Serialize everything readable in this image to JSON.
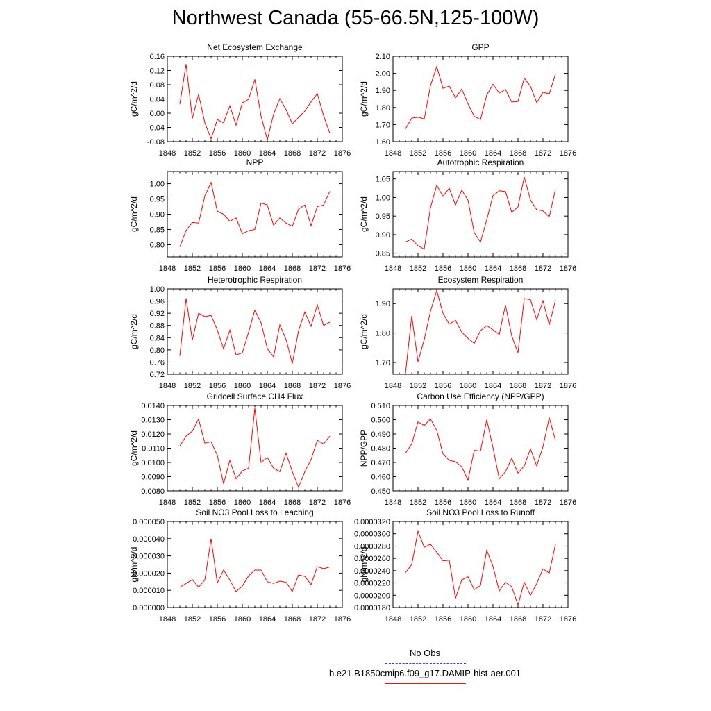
{
  "title": "Northwest Canada (55-66.5N,125-100W)",
  "x_ticks": [
    "1848",
    "1852",
    "1856",
    "1860",
    "1864",
    "1868",
    "1872",
    "1876"
  ],
  "legend": [
    {
      "label": "No Obs",
      "color": "#3b3bd6",
      "style": "dashed"
    },
    {
      "label": "b.e21.B1850cmip6.f09_g17.DAMIP-hist-aer.001",
      "color": "#e31a1c",
      "style": "solid"
    }
  ],
  "series_color": "#ff0000",
  "chart_data": [
    {
      "type": "line",
      "title": "Net Ecosystem Exchange",
      "ylabel": "gC/m^2/d",
      "xlim": [
        1848,
        1876
      ],
      "ylim": [
        -0.08,
        0.16
      ],
      "yticks": [
        "-0.08",
        "-0.04",
        "0.00",
        "0.04",
        "0.08",
        "0.12",
        "0.16"
      ],
      "x": [
        1850,
        1851,
        1852,
        1853,
        1854,
        1855,
        1856,
        1857,
        1858,
        1859,
        1860,
        1861,
        1862,
        1863,
        1864,
        1865,
        1866,
        1867,
        1868,
        1869,
        1870,
        1871,
        1872,
        1873,
        1874
      ],
      "values": [
        0.025,
        0.138,
        -0.015,
        0.053,
        -0.027,
        -0.072,
        -0.018,
        -0.027,
        0.021,
        -0.034,
        0.029,
        0.039,
        0.095,
        -0.008,
        -0.075,
        -0.003,
        0.041,
        0.01,
        -0.03,
        -0.012,
        0.006,
        0.032,
        0.055,
        -0.007,
        -0.056
      ]
    },
    {
      "type": "line",
      "title": "GPP",
      "ylabel": "gC/m^2/d",
      "xlim": [
        1848,
        1876
      ],
      "ylim": [
        1.6,
        2.1
      ],
      "yticks": [
        "1.60",
        "1.70",
        "1.80",
        "1.90",
        "2.00",
        "2.10"
      ],
      "x": [
        1850,
        1851,
        1852,
        1853,
        1854,
        1855,
        1856,
        1857,
        1858,
        1859,
        1860,
        1861,
        1862,
        1863,
        1864,
        1865,
        1866,
        1867,
        1868,
        1869,
        1870,
        1871,
        1872,
        1873,
        1874
      ],
      "values": [
        1.675,
        1.738,
        1.743,
        1.733,
        1.928,
        2.04,
        1.912,
        1.925,
        1.857,
        1.908,
        1.822,
        1.748,
        1.73,
        1.873,
        1.936,
        1.884,
        1.906,
        1.832,
        1.835,
        1.972,
        1.924,
        1.828,
        1.889,
        1.88,
        1.995
      ]
    },
    {
      "type": "line",
      "title": "NPP",
      "ylabel": "gC/m^2/d",
      "xlim": [
        1848,
        1876
      ],
      "ylim": [
        0.76,
        1.04
      ],
      "yticks": [
        "0.80",
        "0.85",
        "0.90",
        "0.95",
        "1.00"
      ],
      "x": [
        1850,
        1851,
        1852,
        1853,
        1854,
        1855,
        1856,
        1857,
        1858,
        1859,
        1860,
        1861,
        1862,
        1863,
        1864,
        1865,
        1866,
        1867,
        1868,
        1869,
        1870,
        1871,
        1872,
        1873,
        1874
      ],
      "values": [
        0.793,
        0.847,
        0.873,
        0.871,
        0.96,
        1.004,
        0.91,
        0.9,
        0.877,
        0.888,
        0.836,
        0.846,
        0.85,
        0.937,
        0.93,
        0.864,
        0.888,
        0.871,
        0.86,
        0.917,
        0.93,
        0.862,
        0.925,
        0.93,
        0.975
      ]
    },
    {
      "type": "line",
      "title": "Autotrophic Respiration",
      "ylabel": "gC/m^2/d",
      "xlim": [
        1848,
        1876
      ],
      "ylim": [
        0.84,
        1.07
      ],
      "yticks": [
        "0.85",
        "0.90",
        "0.95",
        "1.00",
        "1.05"
      ],
      "x": [
        1850,
        1851,
        1852,
        1853,
        1854,
        1855,
        1856,
        1857,
        1858,
        1859,
        1860,
        1861,
        1862,
        1863,
        1864,
        1865,
        1866,
        1867,
        1868,
        1869,
        1870,
        1871,
        1872,
        1873,
        1874
      ],
      "values": [
        0.88,
        0.888,
        0.87,
        0.861,
        0.973,
        1.033,
        1.003,
        1.025,
        0.98,
        1.02,
        0.993,
        0.905,
        0.88,
        0.94,
        1.005,
        1.018,
        1.016,
        0.96,
        0.975,
        1.055,
        0.993,
        0.967,
        0.964,
        0.948,
        1.022
      ]
    },
    {
      "type": "line",
      "title": "Heterotrophic Respiration",
      "ylabel": "gC/m^2/d",
      "xlim": [
        1848,
        1876
      ],
      "ylim": [
        0.72,
        1.0
      ],
      "yticks": [
        "0.72",
        "0.76",
        "0.80",
        "0.84",
        "0.88",
        "0.92",
        "0.96",
        "1.00"
      ],
      "x": [
        1850,
        1851,
        1852,
        1853,
        1854,
        1855,
        1856,
        1857,
        1858,
        1859,
        1860,
        1861,
        1862,
        1863,
        1864,
        1865,
        1866,
        1867,
        1868,
        1869,
        1870,
        1871,
        1872,
        1873,
        1874
      ],
      "values": [
        0.78,
        0.969,
        0.832,
        0.92,
        0.909,
        0.913,
        0.865,
        0.803,
        0.865,
        0.783,
        0.79,
        0.858,
        0.93,
        0.889,
        0.804,
        0.777,
        0.882,
        0.834,
        0.755,
        0.863,
        0.924,
        0.877,
        0.948,
        0.88,
        0.891
      ]
    },
    {
      "type": "line",
      "title": "Ecosystem Respiration",
      "ylabel": "gC/m^2/d",
      "xlim": [
        1848,
        1876
      ],
      "ylim": [
        1.66,
        1.95
      ],
      "yticks": [
        "1.70",
        "1.80",
        "1.90"
      ],
      "x": [
        1850,
        1851,
        1852,
        1853,
        1854,
        1855,
        1856,
        1857,
        1858,
        1859,
        1860,
        1861,
        1862,
        1863,
        1864,
        1865,
        1866,
        1867,
        1868,
        1869,
        1870,
        1871,
        1872,
        1873,
        1874
      ],
      "values": [
        1.663,
        1.858,
        1.702,
        1.778,
        1.874,
        1.944,
        1.867,
        1.83,
        1.843,
        1.803,
        1.782,
        1.765,
        1.808,
        1.825,
        1.811,
        1.795,
        1.895,
        1.79,
        1.733,
        1.917,
        1.913,
        1.845,
        1.91,
        1.828,
        1.911
      ]
    },
    {
      "type": "line",
      "title": "Gridcell Surface CH4 Flux",
      "ylabel": "gC/m^2/d",
      "xlim": [
        1848,
        1876
      ],
      "ylim": [
        0.008,
        0.014
      ],
      "yticks": [
        "0.0080",
        "0.0090",
        "0.0100",
        "0.0110",
        "0.0120",
        "0.0130",
        "0.0140"
      ],
      "x": [
        1850,
        1851,
        1852,
        1853,
        1854,
        1855,
        1856,
        1857,
        1858,
        1859,
        1860,
        1861,
        1862,
        1863,
        1864,
        1865,
        1866,
        1867,
        1868,
        1869,
        1870,
        1871,
        1872,
        1873,
        1874
      ],
      "values": [
        0.01115,
        0.01185,
        0.0122,
        0.01305,
        0.01135,
        0.01145,
        0.0105,
        0.0085,
        0.01015,
        0.00885,
        0.0094,
        0.0096,
        0.0138,
        0.01,
        0.01035,
        0.0096,
        0.00935,
        0.01065,
        0.00935,
        0.00825,
        0.00935,
        0.0102,
        0.01155,
        0.0113,
        0.01185
      ]
    },
    {
      "type": "line",
      "title": "Carbon Use Efficiency (NPP/GPP)",
      "ylabel": "NPP/GPP",
      "xlim": [
        1848,
        1876
      ],
      "ylim": [
        0.45,
        0.51
      ],
      "yticks": [
        "0.450",
        "0.460",
        "0.470",
        "0.480",
        "0.490",
        "0.500",
        "0.510"
      ],
      "x": [
        1850,
        1851,
        1852,
        1853,
        1854,
        1855,
        1856,
        1857,
        1858,
        1859,
        1860,
        1861,
        1862,
        1863,
        1864,
        1865,
        1866,
        1867,
        1868,
        1869,
        1870,
        1871,
        1872,
        1873,
        1874
      ],
      "values": [
        0.4765,
        0.483,
        0.4985,
        0.496,
        0.5005,
        0.4925,
        0.476,
        0.4715,
        0.4705,
        0.467,
        0.4575,
        0.4785,
        0.478,
        0.5,
        0.4805,
        0.4585,
        0.4635,
        0.473,
        0.4625,
        0.4675,
        0.4795,
        0.4675,
        0.481,
        0.5015,
        0.4855
      ]
    },
    {
      "type": "line",
      "title": "Soil NO3 Pool Loss to Leaching",
      "ylabel": "gN/m^2/d",
      "xlim": [
        1848,
        1876
      ],
      "ylim": [
        0.0,
        5e-05
      ],
      "yticks": [
        "0.000000",
        "0.000010",
        "0.000020",
        "0.000030",
        "0.000040",
        "0.000050"
      ],
      "x": [
        1850,
        1851,
        1852,
        1853,
        1854,
        1855,
        1856,
        1857,
        1858,
        1859,
        1860,
        1861,
        1862,
        1863,
        1864,
        1865,
        1866,
        1867,
        1868,
        1869,
        1870,
        1871,
        1872,
        1873,
        1874
      ],
      "values": [
        1.18e-05,
        1.4e-05,
        1.62e-05,
        1.18e-05,
        1.6e-05,
        4e-05,
        1.43e-05,
        2.18e-05,
        1.6e-05,
        9.2e-06,
        1.25e-05,
        1.84e-05,
        2.18e-05,
        2.18e-05,
        1.5e-05,
        1.4e-05,
        1.53e-05,
        1.47e-05,
        9.3e-06,
        1.89e-05,
        1.81e-05,
        1.33e-05,
        2.38e-05,
        2.26e-05,
        2.36e-05
      ]
    },
    {
      "type": "line",
      "title": "Soil NO3 Pool Loss to Runoff",
      "ylabel": "gN/m^2/d",
      "xlim": [
        1848,
        1876
      ],
      "ylim": [
        1.8e-05,
        3.2e-05
      ],
      "yticks": [
        "0.0000180",
        "0.0000200",
        "0.0000220",
        "0.0000240",
        "0.0000260",
        "0.0000280",
        "0.0000300",
        "0.0000320"
      ],
      "x": [
        1850,
        1851,
        1852,
        1853,
        1854,
        1855,
        1856,
        1857,
        1858,
        1859,
        1860,
        1861,
        1862,
        1863,
        1864,
        1865,
        1866,
        1867,
        1868,
        1869,
        1870,
        1871,
        1872,
        1873,
        1874
      ],
      "values": [
        2.37e-05,
        2.5e-05,
        3.04e-05,
        2.78e-05,
        2.83e-05,
        2.7e-05,
        2.56e-05,
        2.57e-05,
        1.95e-05,
        2.25e-05,
        2.3e-05,
        2.09e-05,
        2.16e-05,
        2.73e-05,
        2.47e-05,
        2.07e-05,
        2.21e-05,
        2.14e-05,
        1.84e-05,
        2.21e-05,
        2e-05,
        2.19e-05,
        2.43e-05,
        2.36e-05,
        2.83e-05
      ]
    }
  ]
}
